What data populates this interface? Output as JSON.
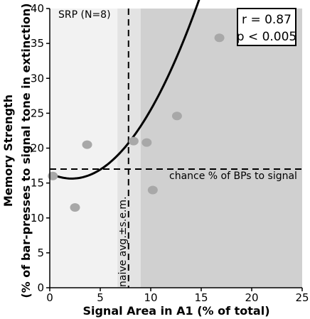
{
  "chart_data": {
    "type": "scatter",
    "xlabel": "Signal Area in A1 (% of total)",
    "ylabel": "Memory Strength",
    "ylabel_sub": "(% of bar-presses to signal tone in extinction)",
    "xlim": [
      0,
      25
    ],
    "ylim": [
      0,
      40
    ],
    "x_ticks": [
      0,
      5,
      10,
      15,
      20,
      25
    ],
    "y_ticks": [
      0,
      5,
      10,
      15,
      20,
      25,
      30,
      35,
      40
    ],
    "grid": false,
    "group_label": "SRP (N=8)",
    "points": [
      {
        "x": 0.3,
        "y": 16.0
      },
      {
        "x": 2.5,
        "y": 11.5
      },
      {
        "x": 3.7,
        "y": 20.5
      },
      {
        "x": 8.3,
        "y": 21.0
      },
      {
        "x": 9.6,
        "y": 20.8
      },
      {
        "x": 10.2,
        "y": 14.0
      },
      {
        "x": 12.6,
        "y": 24.6
      },
      {
        "x": 16.8,
        "y": 35.8
      }
    ],
    "fit": {
      "type": "quadratic",
      "x_range": [
        0,
        16.7
      ],
      "coefficients": [
        16.4,
        -0.7,
        0.161
      ]
    },
    "stats": {
      "r": "r = 0.87",
      "p": "p < 0.005"
    },
    "chance_level": {
      "y": 17.0,
      "label": "chance % of BPs to signal"
    },
    "naive_avg": {
      "x": 7.8,
      "sem_low": 6.7,
      "sem_high": 9.0,
      "label": "naive avg.±s.e.m."
    },
    "colors": {
      "left_region": "#f2f2f2",
      "sem_band": "#e3e3e3",
      "right_region": "#d0d0d0",
      "points": "#a8a8a8",
      "fit": "#000000"
    }
  }
}
